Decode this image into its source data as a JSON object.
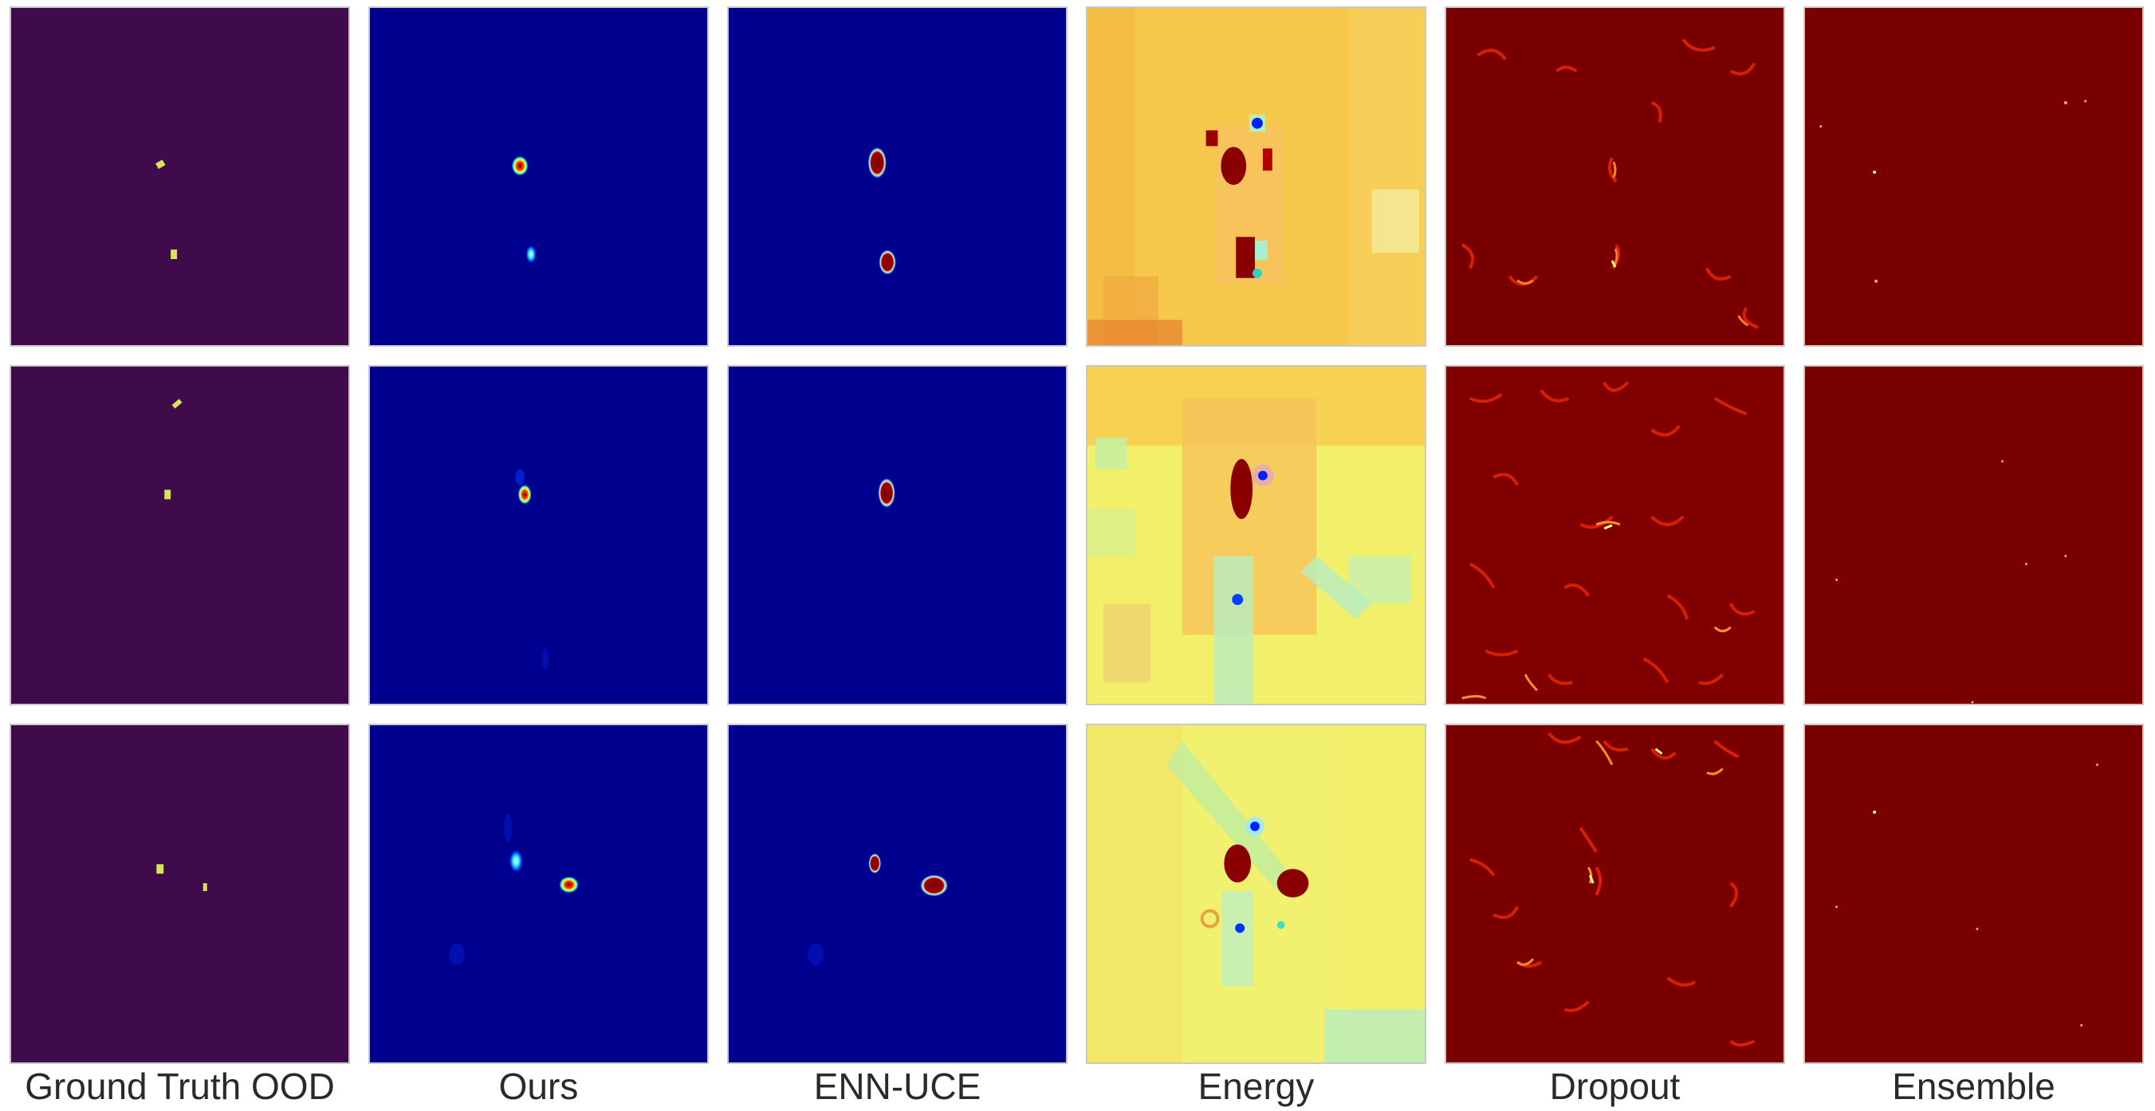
{
  "figure": {
    "columns": [
      {
        "label": "Ground Truth OOD",
        "style": "gt"
      },
      {
        "label": "Ours",
        "style": "blue"
      },
      {
        "label": "ENN-UCE",
        "style": "blue"
      },
      {
        "label": "Energy",
        "style": "energy"
      },
      {
        "label": "Dropout",
        "style": "dropout"
      },
      {
        "label": "Ensemble",
        "style": "ensemble"
      }
    ],
    "rows": 3,
    "colors": {
      "gt_background": "#3f0b4a",
      "gt_blob": "#d7e35a",
      "blue_background": "#00008e",
      "blue_hot": "#7a0000",
      "energy_background": "#f6c94c",
      "dropout_background": "#780000",
      "ensemble_background": "#7a0000"
    }
  }
}
